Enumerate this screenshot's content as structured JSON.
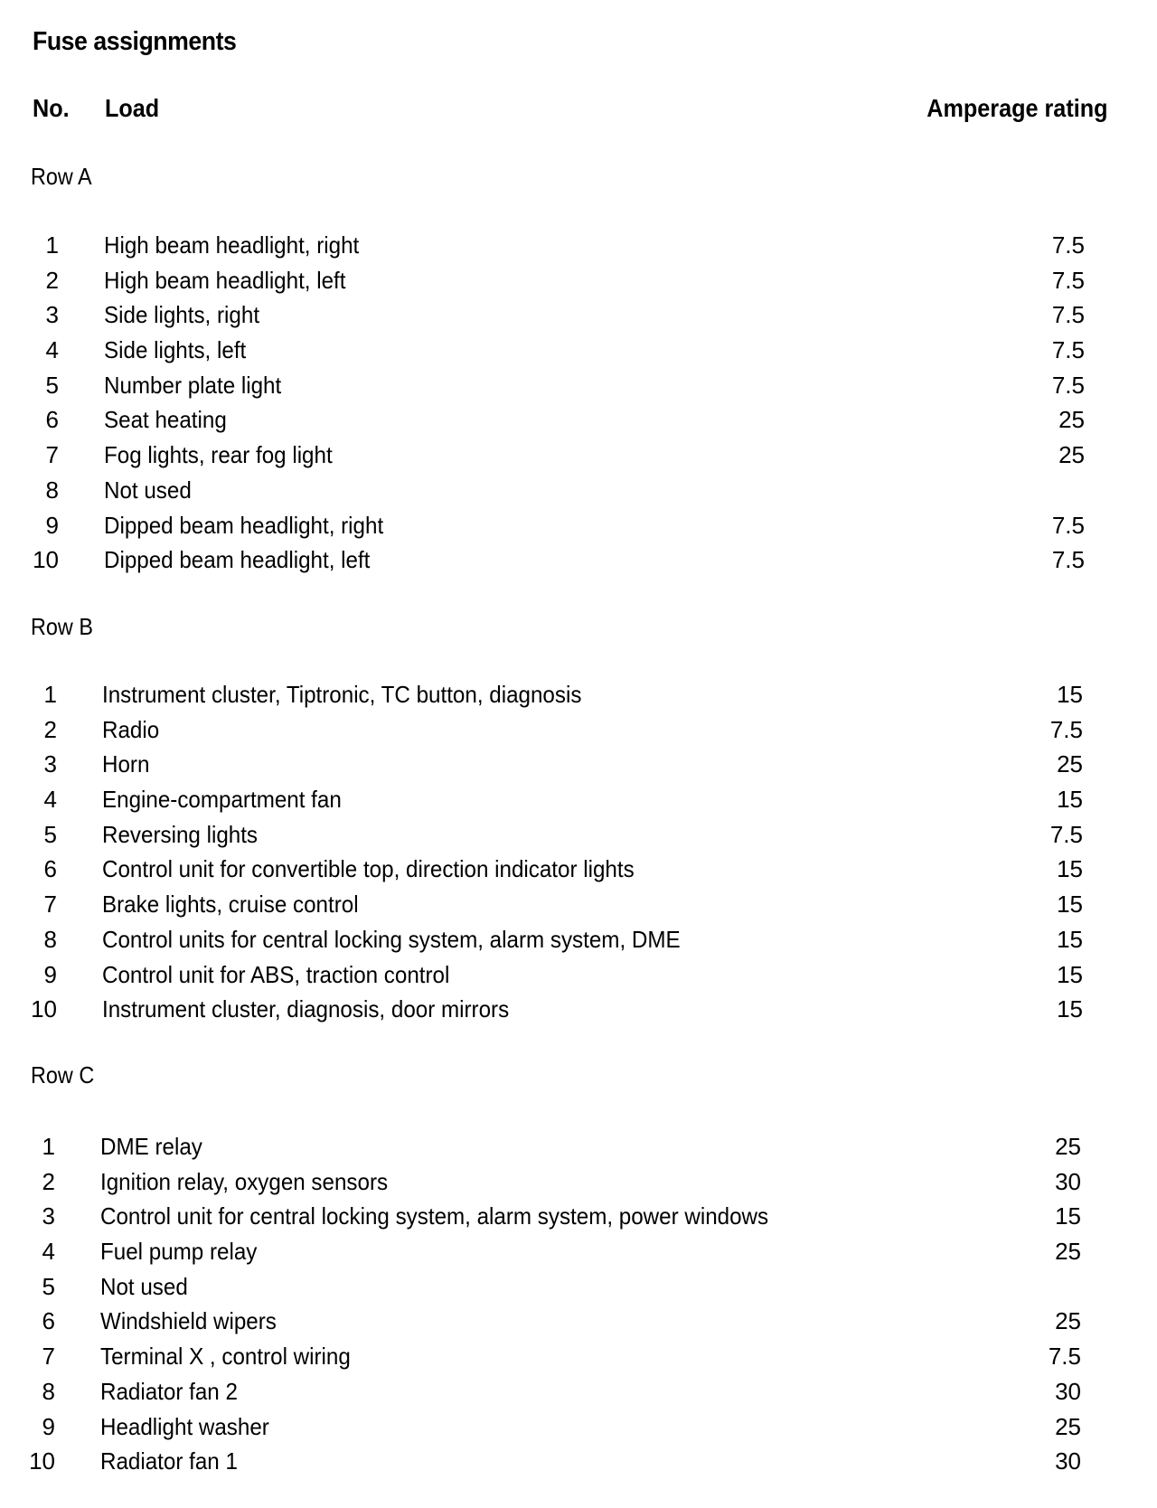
{
  "title": "Fuse assignments",
  "header": {
    "no": "No.",
    "load": "Load",
    "amperage": "Amperage rating"
  },
  "sections": [
    {
      "label": "Row A",
      "rows": [
        {
          "no": "1",
          "load": "High beam headlight, right",
          "amp": "7.5"
        },
        {
          "no": "2",
          "load": "High beam headlight, left",
          "amp": "7.5"
        },
        {
          "no": "3",
          "load": "Side lights, right",
          "amp": "7.5"
        },
        {
          "no": "4",
          "load": "Side lights, left",
          "amp": "7.5"
        },
        {
          "no": "5",
          "load": "Number plate light",
          "amp": "7.5"
        },
        {
          "no": "6",
          "load": "Seat heating",
          "amp": "25"
        },
        {
          "no": "7",
          "load": "Fog lights, rear fog light",
          "amp": "25"
        },
        {
          "no": "8",
          "load": "Not used",
          "amp": ""
        },
        {
          "no": "9",
          "load": "Dipped beam headlight, right",
          "amp": "7.5"
        },
        {
          "no": "10",
          "load": "Dipped beam headlight, left",
          "amp": "7.5"
        }
      ]
    },
    {
      "label": "Row B",
      "rows": [
        {
          "no": "1",
          "load": "Instrument cluster, Tiptronic, TC button, diagnosis",
          "amp": "15"
        },
        {
          "no": "2",
          "load": "Radio",
          "amp": "7.5"
        },
        {
          "no": "3",
          "load": "Horn",
          "amp": "25"
        },
        {
          "no": "4",
          "load": "Engine-compartment fan",
          "amp": "15"
        },
        {
          "no": "5",
          "load": "Reversing lights",
          "amp": "7.5"
        },
        {
          "no": "6",
          "load": "Control unit for convertible top, direction indicator lights",
          "amp": "15"
        },
        {
          "no": "7",
          "load": "Brake lights, cruise control",
          "amp": "15"
        },
        {
          "no": "8",
          "load": "Control units for central locking system, alarm system, DME",
          "amp": "15"
        },
        {
          "no": "9",
          "load": "Control unit for ABS, traction control",
          "amp": "15"
        },
        {
          "no": "10",
          "load": "Instrument cluster, diagnosis, door mirrors",
          "amp": "15"
        }
      ]
    },
    {
      "label": "Row C",
      "rows": [
        {
          "no": "1",
          "load": "DME relay",
          "amp": "25"
        },
        {
          "no": "2",
          "load": "Ignition relay, oxygen sensors",
          "amp": "30"
        },
        {
          "no": "3",
          "load": "Control unit for central locking system, alarm system, power windows",
          "amp": "15"
        },
        {
          "no": "4",
          "load": "Fuel pump relay",
          "amp": "25"
        },
        {
          "no": "5",
          "load": "Not used",
          "amp": ""
        },
        {
          "no": "6",
          "load": "Windshield wipers",
          "amp": "25"
        },
        {
          "no": "7",
          "load": "Terminal X , control wiring",
          "amp": "7.5"
        },
        {
          "no": "8",
          "load": "Radiator fan 2",
          "amp": "30"
        },
        {
          "no": "9",
          "load": "Headlight washer",
          "amp": "25"
        },
        {
          "no": "10",
          "load": "Radiator fan 1",
          "amp": "30"
        }
      ]
    }
  ]
}
